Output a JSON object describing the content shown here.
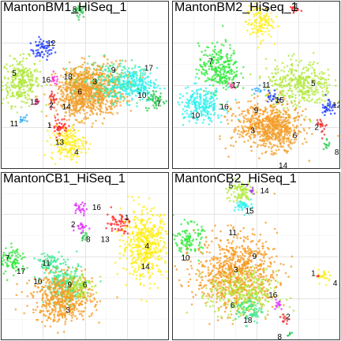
{
  "colors": {
    "1": "#ff1f1f",
    "2": "#ef2727",
    "3": "#f59a20",
    "4": "#ffee10",
    "5": "#b0e83a",
    "6": "#f0a030",
    "7": "#2ee83a",
    "8": "#26c84c",
    "9": "#3ae890",
    "10": "#28f0ee",
    "11": "#27a8f0",
    "12": "#1a38ff",
    "13": "#6c3cd8",
    "14": "#a438ff",
    "15": "#e028ff",
    "16": "#ff28c8",
    "17": "#ff4890",
    "18": "#c8b020"
  },
  "chart_data": [
    {
      "type": "scatter",
      "title": "MantonBM1_HiSeq_1",
      "clusters": [
        {
          "id": "8",
          "x": 0.47,
          "y": 0.94,
          "sx": 0.02,
          "sy": 0.02,
          "n": 25,
          "color": "8"
        },
        {
          "id": "12",
          "x": 0.25,
          "y": 0.71,
          "sx": 0.035,
          "sy": 0.03,
          "n": 60,
          "color": "12"
        },
        {
          "id": "5",
          "x": 0.12,
          "y": 0.52,
          "sx": 0.055,
          "sy": 0.07,
          "n": 280,
          "color": "5"
        },
        {
          "id": "16",
          "x": 0.32,
          "y": 0.53,
          "sx": 0.015,
          "sy": 0.015,
          "n": 15,
          "color": "16"
        },
        {
          "id": "18",
          "x": 0.45,
          "y": 0.51,
          "sx": 0.04,
          "sy": 0.04,
          "n": 80,
          "color": "18"
        },
        {
          "id": "3",
          "x": 0.56,
          "y": 0.48,
          "sx": 0.09,
          "sy": 0.08,
          "n": 520,
          "color": "3"
        },
        {
          "id": "6",
          "x": 0.47,
          "y": 0.42,
          "sx": 0.07,
          "sy": 0.06,
          "n": 380,
          "color": "6"
        },
        {
          "id": "9",
          "x": 0.66,
          "y": 0.52,
          "sx": 0.09,
          "sy": 0.06,
          "n": 180,
          "color": "9"
        },
        {
          "id": "17",
          "x": 0.79,
          "y": 0.5,
          "sx": 0.07,
          "sy": 0.05,
          "n": 230,
          "color": "10"
        },
        {
          "id": "10",
          "x": 0.92,
          "y": 0.41,
          "sx": 0.03,
          "sy": 0.03,
          "n": 50,
          "color": "8"
        },
        {
          "id": "15",
          "x": 0.22,
          "y": 0.4,
          "sx": 0.01,
          "sy": 0.01,
          "n": 10,
          "color": "17"
        },
        {
          "id": "2",
          "x": 0.31,
          "y": 0.42,
          "sx": 0.012,
          "sy": 0.03,
          "n": 20,
          "color": "2"
        },
        {
          "id": "11",
          "x": 0.13,
          "y": 0.3,
          "sx": 0.01,
          "sy": 0.02,
          "n": 12,
          "color": "11"
        },
        {
          "id": "1",
          "x": 0.35,
          "y": 0.25,
          "sx": 0.025,
          "sy": 0.03,
          "n": 45,
          "color": "1"
        },
        {
          "id": "13",
          "x": 0.4,
          "y": 0.15,
          "sx": 0.05,
          "sy": 0.05,
          "n": 170,
          "color": "4"
        }
      ],
      "labels": [
        {
          "text": "8",
          "x": 0.44,
          "y": 0.95
        },
        {
          "text": "12",
          "x": 0.3,
          "y": 0.75
        },
        {
          "text": "5",
          "x": 0.08,
          "y": 0.57
        },
        {
          "text": "16",
          "x": 0.27,
          "y": 0.53
        },
        {
          "text": "18",
          "x": 0.4,
          "y": 0.55
        },
        {
          "text": "3",
          "x": 0.56,
          "y": 0.52
        },
        {
          "text": "6",
          "x": 0.47,
          "y": 0.46
        },
        {
          "text": "9",
          "x": 0.67,
          "y": 0.59
        },
        {
          "text": "17",
          "x": 0.88,
          "y": 0.6
        },
        {
          "text": "10",
          "x": 0.84,
          "y": 0.44
        },
        {
          "text": "7",
          "x": 0.94,
          "y": 0.39
        },
        {
          "text": "15",
          "x": 0.2,
          "y": 0.4
        },
        {
          "text": "2",
          "x": 0.3,
          "y": 0.38
        },
        {
          "text": "14",
          "x": 0.39,
          "y": 0.37
        },
        {
          "text": "11",
          "x": 0.08,
          "y": 0.27
        },
        {
          "text": "1",
          "x": 0.29,
          "y": 0.26
        },
        {
          "text": "13",
          "x": 0.35,
          "y": 0.16
        },
        {
          "text": "4",
          "x": 0.45,
          "y": 0.1
        }
      ]
    },
    {
      "type": "scatter",
      "title": "MantonBM2_HiSeq_1",
      "clusters": [
        {
          "id": "4",
          "x": 0.52,
          "y": 0.87,
          "sx": 0.04,
          "sy": 0.05,
          "n": 120,
          "color": "4"
        },
        {
          "id": "1",
          "x": 0.72,
          "y": 0.95,
          "sx": 0.015,
          "sy": 0.01,
          "n": 12,
          "color": "1"
        },
        {
          "id": "7",
          "x": 0.28,
          "y": 0.6,
          "sx": 0.06,
          "sy": 0.07,
          "n": 260,
          "color": "7"
        },
        {
          "id": "5",
          "x": 0.76,
          "y": 0.5,
          "sx": 0.1,
          "sy": 0.07,
          "n": 380,
          "color": "5"
        },
        {
          "id": "10",
          "x": 0.17,
          "y": 0.38,
          "sx": 0.07,
          "sy": 0.05,
          "n": 230,
          "color": "10"
        },
        {
          "id": "3",
          "x": 0.56,
          "y": 0.26,
          "sx": 0.1,
          "sy": 0.07,
          "n": 520,
          "color": "3"
        },
        {
          "id": "6",
          "x": 0.64,
          "y": 0.22,
          "sx": 0.06,
          "sy": 0.05,
          "n": 200,
          "color": "6"
        },
        {
          "id": "11",
          "x": 0.52,
          "y": 0.47,
          "sx": 0.02,
          "sy": 0.015,
          "n": 12,
          "color": "11"
        },
        {
          "id": "17",
          "x": 0.35,
          "y": 0.5,
          "sx": 0.012,
          "sy": 0.012,
          "n": 10,
          "color": "17"
        },
        {
          "id": "15",
          "x": 0.6,
          "y": 0.43,
          "sx": 0.02,
          "sy": 0.02,
          "n": 20,
          "color": "12"
        },
        {
          "id": "12",
          "x": 0.93,
          "y": 0.37,
          "sx": 0.02,
          "sy": 0.03,
          "n": 35,
          "color": "12"
        },
        {
          "id": "2",
          "x": 0.89,
          "y": 0.27,
          "sx": 0.015,
          "sy": 0.03,
          "n": 20,
          "color": "2"
        },
        {
          "id": "8",
          "x": 0.92,
          "y": 0.14,
          "sx": 0.012,
          "sy": 0.02,
          "n": 12,
          "color": "8"
        }
      ],
      "labels": [
        {
          "text": "4",
          "x": 0.56,
          "y": 0.95
        },
        {
          "text": "1",
          "x": 0.74,
          "y": 0.97
        },
        {
          "text": "7",
          "x": 0.23,
          "y": 0.64
        },
        {
          "text": "17",
          "x": 0.38,
          "y": 0.5
        },
        {
          "text": "11",
          "x": 0.56,
          "y": 0.5
        },
        {
          "text": "5",
          "x": 0.84,
          "y": 0.51
        },
        {
          "text": "16",
          "x": 0.31,
          "y": 0.37
        },
        {
          "text": "15",
          "x": 0.64,
          "y": 0.41
        },
        {
          "text": "9",
          "x": 0.5,
          "y": 0.35
        },
        {
          "text": "10",
          "x": 0.14,
          "y": 0.32
        },
        {
          "text": "12",
          "x": 0.98,
          "y": 0.38
        },
        {
          "text": "3",
          "x": 0.48,
          "y": 0.23
        },
        {
          "text": "6",
          "x": 0.73,
          "y": 0.2
        },
        {
          "text": "2",
          "x": 0.86,
          "y": 0.25
        },
        {
          "text": "8",
          "x": 0.98,
          "y": 0.1
        },
        {
          "text": "14",
          "x": 0.66,
          "y": 0.02
        }
      ]
    },
    {
      "type": "scatter",
      "title": "MantonCB1_HiSeq_1",
      "clusters": [
        {
          "id": "16",
          "x": 0.47,
          "y": 0.78,
          "sx": 0.02,
          "sy": 0.02,
          "n": 25,
          "color": "15"
        },
        {
          "id": "2",
          "x": 0.48,
          "y": 0.67,
          "sx": 0.02,
          "sy": 0.02,
          "n": 20,
          "color": "15"
        },
        {
          "id": "8",
          "x": 0.5,
          "y": 0.62,
          "sx": 0.012,
          "sy": 0.015,
          "n": 12,
          "color": "8"
        },
        {
          "id": "1",
          "x": 0.7,
          "y": 0.7,
          "sx": 0.035,
          "sy": 0.03,
          "n": 55,
          "color": "1"
        },
        {
          "id": "4",
          "x": 0.86,
          "y": 0.57,
          "sx": 0.07,
          "sy": 0.1,
          "n": 480,
          "color": "4"
        },
        {
          "id": "7",
          "x": 0.07,
          "y": 0.47,
          "sx": 0.04,
          "sy": 0.04,
          "n": 90,
          "color": "7"
        },
        {
          "id": "11",
          "x": 0.29,
          "y": 0.46,
          "sx": 0.03,
          "sy": 0.03,
          "n": 70,
          "color": "9"
        },
        {
          "id": "9",
          "x": 0.38,
          "y": 0.33,
          "sx": 0.06,
          "sy": 0.06,
          "n": 230,
          "color": "9"
        },
        {
          "id": "3",
          "x": 0.37,
          "y": 0.25,
          "sx": 0.09,
          "sy": 0.07,
          "n": 520,
          "color": "3"
        },
        {
          "id": "6",
          "x": 0.46,
          "y": 0.33,
          "sx": 0.04,
          "sy": 0.04,
          "n": 90,
          "color": "5"
        }
      ],
      "labels": [
        {
          "text": "16",
          "x": 0.57,
          "y": 0.79
        },
        {
          "text": "2",
          "x": 0.43,
          "y": 0.69
        },
        {
          "text": "8",
          "x": 0.52,
          "y": 0.6
        },
        {
          "text": "1",
          "x": 0.75,
          "y": 0.73
        },
        {
          "text": "13",
          "x": 0.62,
          "y": 0.6
        },
        {
          "text": "4",
          "x": 0.87,
          "y": 0.56
        },
        {
          "text": "14",
          "x": 0.86,
          "y": 0.44
        },
        {
          "text": "7",
          "x": 0.04,
          "y": 0.49
        },
        {
          "text": "17",
          "x": 0.12,
          "y": 0.41
        },
        {
          "text": "11",
          "x": 0.27,
          "y": 0.46
        },
        {
          "text": "10",
          "x": 0.22,
          "y": 0.35
        },
        {
          "text": "9",
          "x": 0.41,
          "y": 0.33
        },
        {
          "text": "6",
          "x": 0.5,
          "y": 0.33
        },
        {
          "text": "3",
          "x": 0.4,
          "y": 0.18
        }
      ]
    },
    {
      "type": "scatter",
      "title": "MantonCB2_HiSeq_1",
      "clusters": [
        {
          "id": "5",
          "x": 0.4,
          "y": 0.88,
          "sx": 0.04,
          "sy": 0.035,
          "n": 90,
          "color": "5"
        },
        {
          "id": "15",
          "x": 0.44,
          "y": 0.8,
          "sx": 0.03,
          "sy": 0.02,
          "n": 40,
          "color": "10"
        },
        {
          "id": "14",
          "x": 0.47,
          "y": 0.89,
          "sx": 0.015,
          "sy": 0.01,
          "n": 10,
          "color": "14"
        },
        {
          "id": "7",
          "x": 0.1,
          "y": 0.6,
          "sx": 0.04,
          "sy": 0.045,
          "n": 110,
          "color": "7"
        },
        {
          "id": "3",
          "x": 0.38,
          "y": 0.4,
          "sx": 0.12,
          "sy": 0.11,
          "n": 820,
          "color": "3"
        },
        {
          "id": "6",
          "x": 0.42,
          "y": 0.27,
          "sx": 0.1,
          "sy": 0.07,
          "n": 300,
          "color": "5"
        },
        {
          "id": "18",
          "x": 0.46,
          "y": 0.18,
          "sx": 0.04,
          "sy": 0.04,
          "n": 80,
          "color": "9"
        },
        {
          "id": "16",
          "x": 0.63,
          "y": 0.22,
          "sx": 0.015,
          "sy": 0.02,
          "n": 14,
          "color": "15"
        },
        {
          "id": "2",
          "x": 0.67,
          "y": 0.12,
          "sx": 0.015,
          "sy": 0.02,
          "n": 12,
          "color": "2"
        },
        {
          "id": "8",
          "x": 0.7,
          "y": 0.04,
          "sx": 0.01,
          "sy": 0.01,
          "n": 6,
          "color": "8"
        },
        {
          "id": "4",
          "x": 0.91,
          "y": 0.38,
          "sx": 0.02,
          "sy": 0.02,
          "n": 25,
          "color": "4"
        },
        {
          "id": "1",
          "x": 0.87,
          "y": 0.38,
          "sx": 0.005,
          "sy": 0.005,
          "n": 3,
          "color": "1"
        }
      ],
      "labels": [
        {
          "text": "5",
          "x": 0.35,
          "y": 0.92
        },
        {
          "text": "14",
          "x": 0.55,
          "y": 0.89
        },
        {
          "text": "15",
          "x": 0.46,
          "y": 0.77
        },
        {
          "text": "11",
          "x": 0.36,
          "y": 0.64
        },
        {
          "text": "10",
          "x": 0.08,
          "y": 0.49
        },
        {
          "text": "9",
          "x": 0.49,
          "y": 0.5
        },
        {
          "text": "3",
          "x": 0.38,
          "y": 0.42
        },
        {
          "text": "6",
          "x": 0.36,
          "y": 0.21
        },
        {
          "text": "16",
          "x": 0.6,
          "y": 0.27
        },
        {
          "text": "18",
          "x": 0.45,
          "y": 0.12
        },
        {
          "text": "2",
          "x": 0.69,
          "y": 0.14
        },
        {
          "text": "8",
          "x": 0.64,
          "y": 0.02
        },
        {
          "text": "1",
          "x": 0.84,
          "y": 0.4
        },
        {
          "text": "4",
          "x": 0.97,
          "y": 0.34
        }
      ]
    }
  ]
}
